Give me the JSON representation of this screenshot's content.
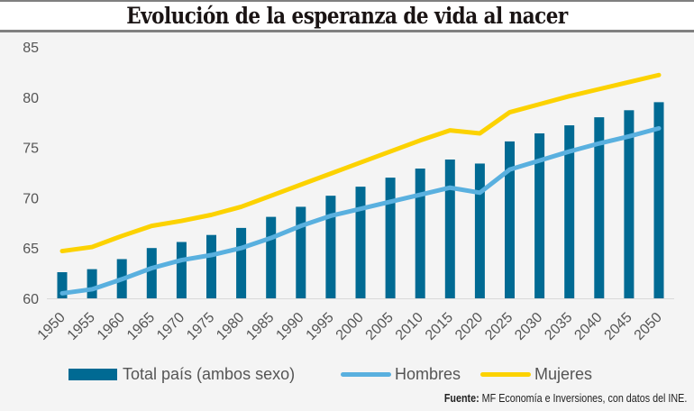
{
  "title": "Evolución de la esperanza de vida al nacer",
  "source": {
    "label": "Fuente:",
    "text": "MF Economía e Inversiones, con datos del INE."
  },
  "colors": {
    "total": "#006a93",
    "hombres": "#59b0df",
    "mujeres": "#fcd200",
    "axis_text": "#555555",
    "background": "#f4f4f4"
  },
  "legend": [
    {
      "name": "Total país (ambos sexo)",
      "type": "bar"
    },
    {
      "name": "Hombres",
      "type": "line"
    },
    {
      "name": "Mujeres",
      "type": "line"
    }
  ],
  "chart_data": {
    "type": "bar",
    "title": "Evolución de la esperanza de vida al nacer",
    "xlabel": "",
    "ylabel": "",
    "ylim": [
      60,
      85
    ],
    "yticks": [
      60,
      65,
      70,
      75,
      80,
      85
    ],
    "grid": false,
    "legend_position": "bottom",
    "categories": [
      "1950",
      "1955",
      "1960",
      "1965",
      "1970",
      "1975",
      "1980",
      "1985",
      "1990",
      "1995",
      "2000",
      "2005",
      "2010",
      "2015",
      "2020",
      "2025",
      "2030",
      "2035",
      "2040",
      "2045",
      "2050"
    ],
    "series": [
      {
        "name": "Total país (ambos sexo)",
        "type": "bar",
        "values": [
          62.6,
          62.9,
          63.9,
          65.0,
          65.6,
          66.3,
          67.0,
          68.1,
          69.1,
          70.2,
          71.1,
          72.0,
          72.9,
          73.8,
          73.4,
          75.6,
          76.4,
          77.2,
          78.0,
          78.7,
          79.5
        ]
      },
      {
        "name": "Hombres",
        "type": "line",
        "values": [
          60.5,
          60.9,
          61.9,
          63.0,
          63.8,
          64.3,
          65.0,
          66.0,
          67.2,
          68.2,
          68.9,
          69.6,
          70.3,
          71.0,
          70.5,
          72.8,
          73.7,
          74.6,
          75.4,
          76.1,
          76.9
        ]
      },
      {
        "name": "Mujeres",
        "type": "line",
        "values": [
          64.7,
          65.1,
          66.2,
          67.2,
          67.7,
          68.3,
          69.1,
          70.2,
          71.3,
          72.4,
          73.5,
          74.6,
          75.7,
          76.7,
          76.4,
          78.5,
          79.3,
          80.1,
          80.8,
          81.5,
          82.2
        ]
      }
    ]
  }
}
